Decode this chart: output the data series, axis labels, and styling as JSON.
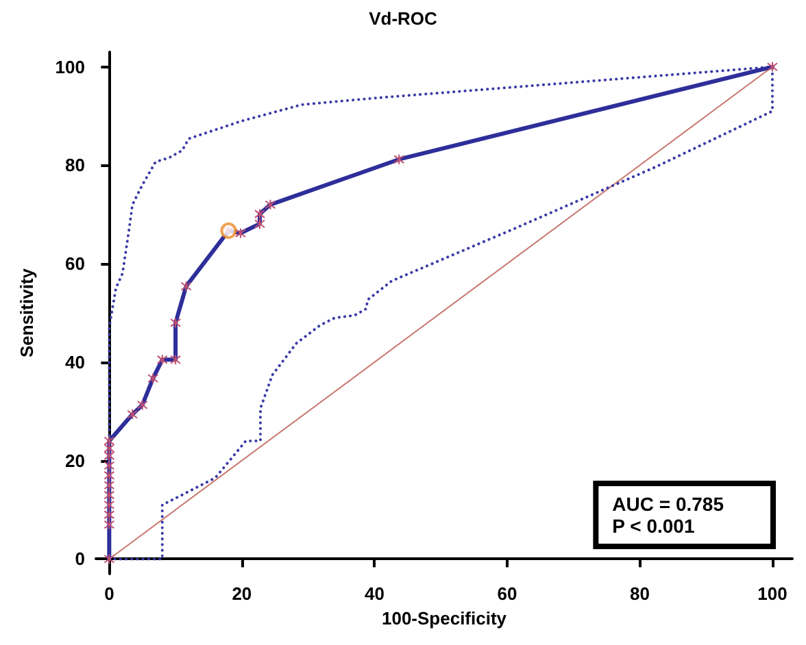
{
  "chart_data": {
    "type": "line",
    "title": "Vd-ROC",
    "xlabel": "100-Specificity",
    "ylabel": "Sensitivity",
    "xlim": [
      -2,
      103
    ],
    "ylim": [
      -3,
      103
    ],
    "xticks": [
      0,
      20,
      40,
      60,
      80,
      100
    ],
    "yticks": [
      0,
      20,
      40,
      60,
      80,
      100
    ],
    "annotations": [
      "AUC = 0.785",
      "P < 0.001"
    ],
    "series": [
      {
        "type": "line",
        "color": "#c8786e",
        "line_style": "solid",
        "x": [
          0,
          100
        ],
        "values": [
          0,
          100
        ]
      },
      {
        "type": "line",
        "color": "#3a3aa8",
        "marker": "none",
        "line_style": "dotted",
        "x": [
          0,
          0,
          1,
          2,
          3,
          3.5,
          5,
          7,
          9,
          11,
          12,
          20,
          29,
          40.5,
          100
        ],
        "values": [
          0,
          47,
          55,
          58,
          67,
          72,
          76,
          80.7,
          81.5,
          83,
          85.4,
          89,
          92.3,
          93.7,
          100
        ]
      },
      {
        "type": "line",
        "color": "#3a3aa8",
        "marker": "none",
        "line_style": "dotted",
        "x": [
          0,
          8,
          8,
          10.5,
          16,
          20.6,
          22.8,
          22.8,
          24.6,
          28.2,
          31.8,
          34,
          37,
          38.7,
          39,
          42.6,
          60.7,
          82.3,
          100,
          100
        ],
        "values": [
          0,
          0,
          11,
          12.7,
          16.5,
          24,
          24,
          30.6,
          37.4,
          43.8,
          47.5,
          49,
          49.5,
          50.8,
          52.7,
          56.5,
          66.9,
          79.6,
          91,
          100
        ]
      },
      {
        "type": "line",
        "color": "#2e2e9a",
        "marker": "cross",
        "line_style": "solid",
        "x": [
          0,
          0,
          0,
          0,
          0,
          0,
          0,
          0,
          0,
          0,
          0,
          3.5,
          5,
          6.6,
          8,
          10,
          10,
          11.6,
          18,
          19.8,
          22.7,
          22.7,
          24.3,
          43.7,
          100
        ],
        "values": [
          0,
          7,
          9,
          11,
          13,
          15,
          17,
          19,
          21,
          22.5,
          24,
          29.4,
          31.3,
          36.7,
          40.5,
          40.5,
          48,
          55.4,
          66.7,
          66.2,
          68.1,
          70.1,
          72,
          81.2,
          100
        ]
      },
      {
        "type": "scatter",
        "color": "#f08a24",
        "marker": "circle",
        "x": [
          18
        ],
        "values": [
          66.7
        ]
      }
    ]
  }
}
